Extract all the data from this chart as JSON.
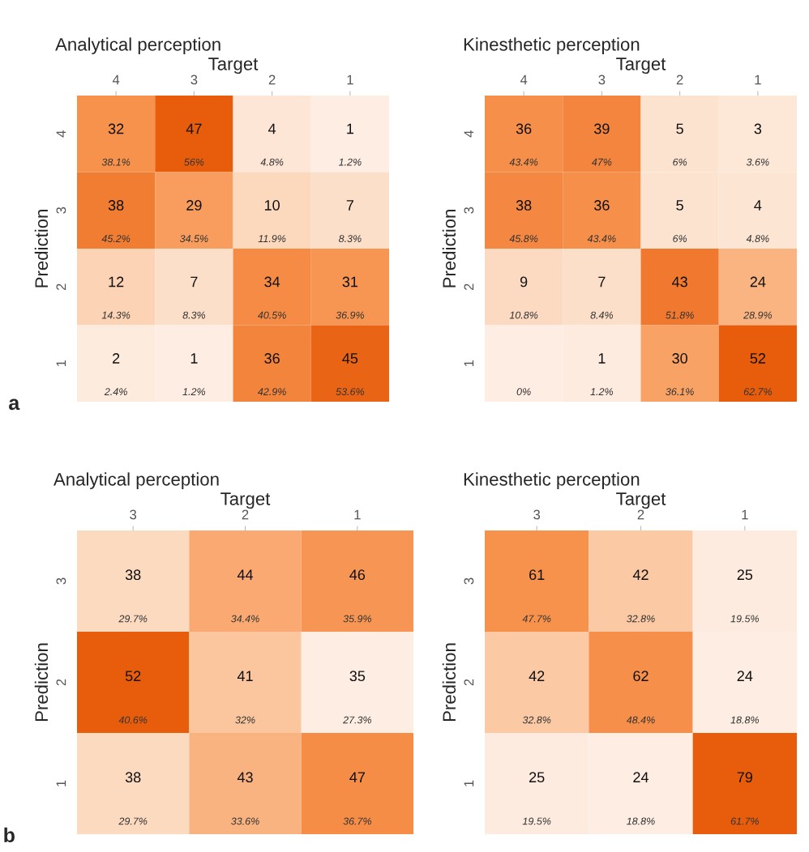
{
  "chart_data": [
    {
      "type": "heatmap",
      "title": "Analytical perception",
      "xlabel": "Target",
      "ylabel": "Prediction",
      "categories": [
        "4",
        "3",
        "2",
        "1"
      ],
      "y_categories": [
        "4",
        "3",
        "2",
        "1"
      ],
      "cells": [
        [
          32,
          47,
          4,
          1
        ],
        [
          38,
          29,
          10,
          7
        ],
        [
          12,
          7,
          34,
          31
        ],
        [
          2,
          1,
          36,
          45
        ]
      ],
      "data_labels": true,
      "annotations": [
        "38.1%",
        "56%",
        "4.8%",
        "1.2%",
        "45.2%",
        "34.5%",
        "11.9%",
        "8.3%",
        "14.3%",
        "8.3%",
        "40.5%",
        "36.9%",
        "2.4%",
        "1.2%",
        "42.9%",
        "53.6%",
        "a"
      ]
    },
    {
      "type": "heatmap",
      "title": "Kinesthetic perception",
      "xlabel": "Target",
      "ylabel": "Prediction",
      "categories": [
        "4",
        "3",
        "2",
        "1"
      ],
      "y_categories": [
        "4",
        "3",
        "2",
        "1"
      ],
      "cells": [
        [
          36,
          39,
          5,
          3
        ],
        [
          38,
          36,
          5,
          4
        ],
        [
          9,
          7,
          43,
          24
        ],
        [
          0,
          1,
          30,
          52
        ]
      ],
      "data_labels": true,
      "cell_labels": [
        [
          "36",
          "39",
          "5",
          "3"
        ],
        [
          "38",
          "36",
          "5",
          "4"
        ],
        [
          "9",
          "7",
          "43",
          "24"
        ],
        [
          "0%",
          "1",
          "30",
          "52"
        ]
      ],
      "annotations": [
        "43.4%",
        "47%",
        "6%",
        "3.6%",
        "45.8%",
        "43.4%",
        "6%",
        "4.8%",
        "10.8%",
        "8.4%",
        "51.8%",
        "28.9%",
        "1.2%",
        "36.1%",
        "62.7%"
      ]
    },
    {
      "type": "heatmap",
      "title": "Analytical perception",
      "xlabel": "Target",
      "ylabel": "Prediction",
      "categories": [
        "3",
        "2",
        "1"
      ],
      "y_categories": [
        "3",
        "2",
        "1"
      ],
      "cells": [
        [
          38,
          44,
          46
        ],
        [
          52,
          41,
          35
        ],
        [
          38,
          43,
          47
        ]
      ],
      "data_labels": true,
      "annotations": [
        "29.7%",
        "34.4%",
        "35.9%",
        "40.6%",
        "32%",
        "27.3%",
        "29.7%",
        "33.6%",
        "36.7%",
        "b"
      ]
    },
    {
      "type": "heatmap",
      "title": "Kinesthetic perception",
      "xlabel": "Target",
      "ylabel": "Prediction",
      "categories": [
        "3",
        "2",
        "1"
      ],
      "y_categories": [
        "3",
        "2",
        "1"
      ],
      "cells": [
        [
          61,
          42,
          25
        ],
        [
          42,
          62,
          24
        ],
        [
          25,
          24,
          79
        ]
      ],
      "data_labels": true,
      "annotations": [
        "47.7%",
        "32.8%",
        "19.5%",
        "32.8%",
        "48.4%",
        "18.8%",
        "19.5%",
        "18.8%",
        "61.7%"
      ]
    }
  ]
}
